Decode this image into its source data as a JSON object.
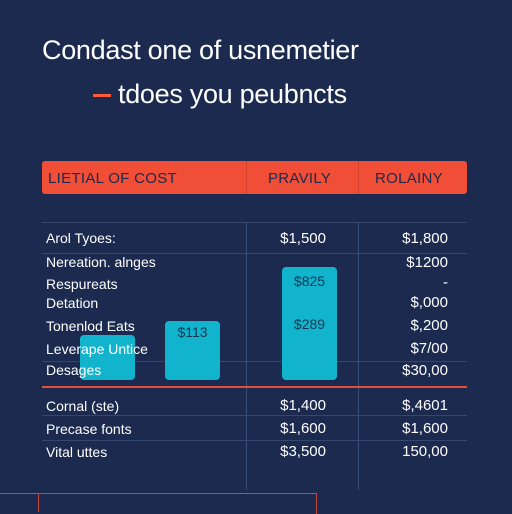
{
  "title_line1": "Condast one of usnemetier",
  "title_line2": "tdoes you peubncts",
  "colors": {
    "background": "#1b2a4e",
    "accent": "#f04e37",
    "bar": "#12b3cc"
  },
  "chart_data": {
    "type": "table",
    "columns": [
      "LIETIAL OF COST",
      "PRAVILY",
      "ROLAINY"
    ],
    "rows": [
      {
        "label": "Arol Tyoes:",
        "c2": "$1,500",
        "c3": "$1,800"
      },
      {
        "label": "Nereation. alnges",
        "c2": "",
        "c3": "$1200"
      },
      {
        "label": "Respureats",
        "c2": "",
        "c3": "-"
      },
      {
        "label": "Detation",
        "c2": "",
        "c3": "$,000"
      },
      {
        "label": "Tonenlod Eats",
        "c2": "",
        "c3": "$,200"
      },
      {
        "label": "Leverape Untice",
        "c2": "",
        "c3": "$7/00"
      },
      {
        "label": "Desages",
        "c2": "",
        "c3": "$30,00"
      }
    ],
    "total_rows": [
      {
        "label": "Cornal (ste)",
        "c2": "$1,400",
        "c3": "$,4601"
      },
      {
        "label": "Precase fonts",
        "c2": "$1,600",
        "c3": "$1,600"
      },
      {
        "label": "Vital uttes",
        "c2": "$3,500",
        "c3": "150,00"
      }
    ],
    "bars": [
      {
        "label": "",
        "value": 45
      },
      {
        "label": "$113",
        "value": 59
      },
      {
        "label": "$825",
        "value": 113
      },
      {
        "label": "$289",
        "value": 113
      }
    ]
  }
}
